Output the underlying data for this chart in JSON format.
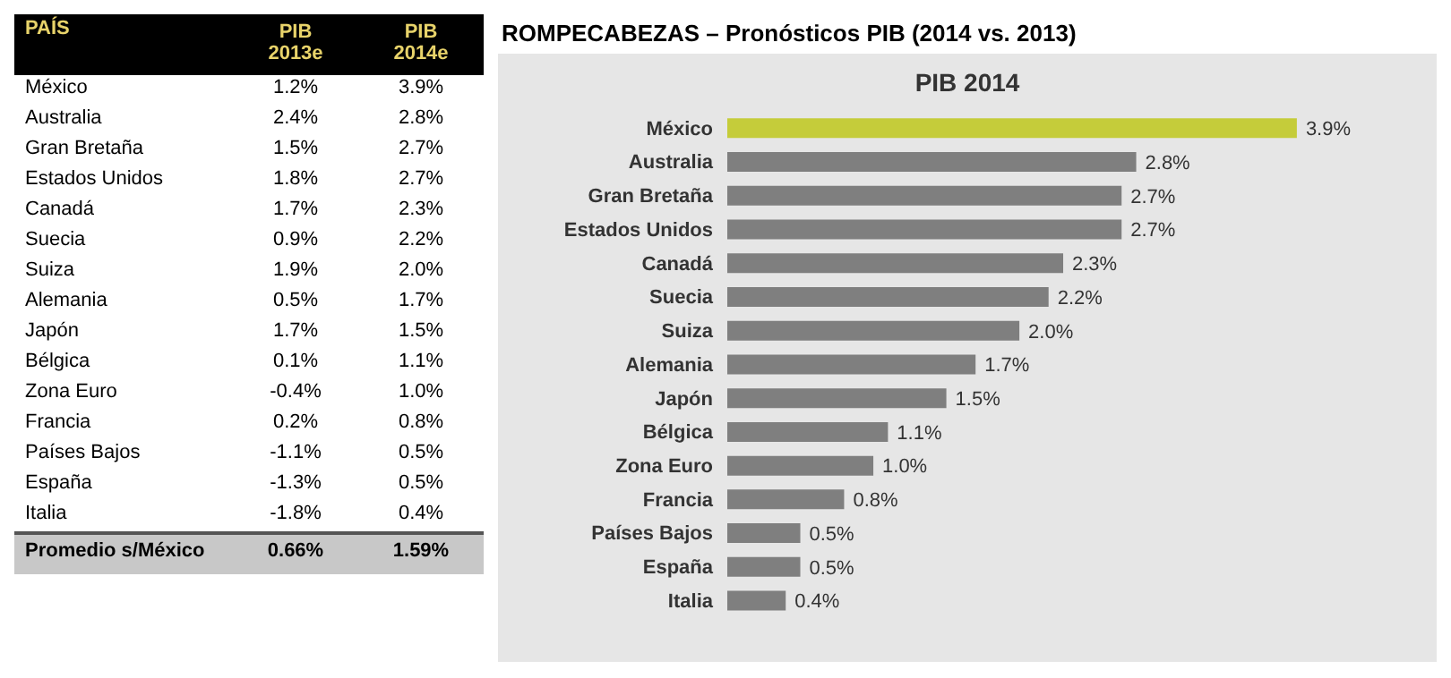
{
  "chart_data": [
    {
      "type": "other",
      "ylabel": "PAÍS",
      "categories": [
        "México",
        "Australia",
        "Gran Bretaña",
        "Estados Unidos",
        "Canadá",
        "Suecia",
        "Suiza",
        "Alemania",
        "Japón",
        "Bélgica",
        "Zona Euro",
        "Francia",
        "Países Bajos",
        "España",
        "Italia",
        "Promedio s/México"
      ],
      "series": [
        {
          "name": "PIB 2013e",
          "values": [
            1.2,
            2.4,
            1.5,
            1.8,
            1.7,
            0.9,
            1.9,
            0.5,
            1.7,
            0.1,
            -0.4,
            0.2,
            -1.1,
            -1.3,
            -1.8,
            0.66
          ],
          "value_labels": [
            "1.2%",
            "2.4%",
            "1.5%",
            "1.8%",
            "1.7%",
            "0.9%",
            "1.9%",
            "0.5%",
            "1.7%",
            "0.1%",
            "-0.4%",
            "0.2%",
            "-1.1%",
            "-1.3%",
            "-1.8%",
            "0.66%"
          ]
        },
        {
          "name": "PIB 2014e",
          "values": [
            3.9,
            2.8,
            2.7,
            2.7,
            2.3,
            2.2,
            2.0,
            1.7,
            1.5,
            1.1,
            1.0,
            0.8,
            0.5,
            0.5,
            0.4,
            1.59
          ],
          "value_labels": [
            "3.9%",
            "2.8%",
            "2.7%",
            "2.7%",
            "2.3%",
            "2.2%",
            "2.0%",
            "1.7%",
            "1.5%",
            "1.1%",
            "1.0%",
            "0.8%",
            "0.5%",
            "0.5%",
            "0.4%",
            "1.59%"
          ]
        }
      ]
    },
    {
      "type": "bar",
      "orientation": "horizontal",
      "title": "ROMPECABEZAS – Pronósticos PIB (2014 vs. 2013)",
      "subtitle": "PIB 2014",
      "tick_labels": "y",
      "grid": false,
      "legend": false,
      "categories": [
        "México",
        "Australia",
        "Gran Bretaña",
        "Estados Unidos",
        "Canadá",
        "Suecia",
        "Suiza",
        "Alemania",
        "Japón",
        "Bélgica",
        "Zona Euro",
        "Francia",
        "Países Bajos",
        "España",
        "Italia"
      ],
      "values": [
        3.9,
        2.8,
        2.7,
        2.7,
        2.3,
        2.2,
        2.0,
        1.7,
        1.5,
        1.1,
        1.0,
        0.8,
        0.5,
        0.5,
        0.4
      ],
      "colors": [
        "#c5cc3a",
        "#7f7f7f",
        "#7f7f7f",
        "#7f7f7f",
        "#7f7f7f",
        "#7f7f7f",
        "#7f7f7f",
        "#7f7f7f",
        "#7f7f7f",
        "#7f7f7f",
        "#7f7f7f",
        "#7f7f7f",
        "#7f7f7f",
        "#7f7f7f",
        "#7f7f7f"
      ],
      "value_labels": [
        "3.9%",
        "2.8%",
        "2.7%",
        "2.7%",
        "2.3%",
        "2.2%",
        "2.0%",
        "1.7%",
        "1.5%",
        "1.1%",
        "1.0%",
        "0.8%",
        "0.5%",
        "0.5%",
        "0.4%"
      ]
    }
  ]
}
